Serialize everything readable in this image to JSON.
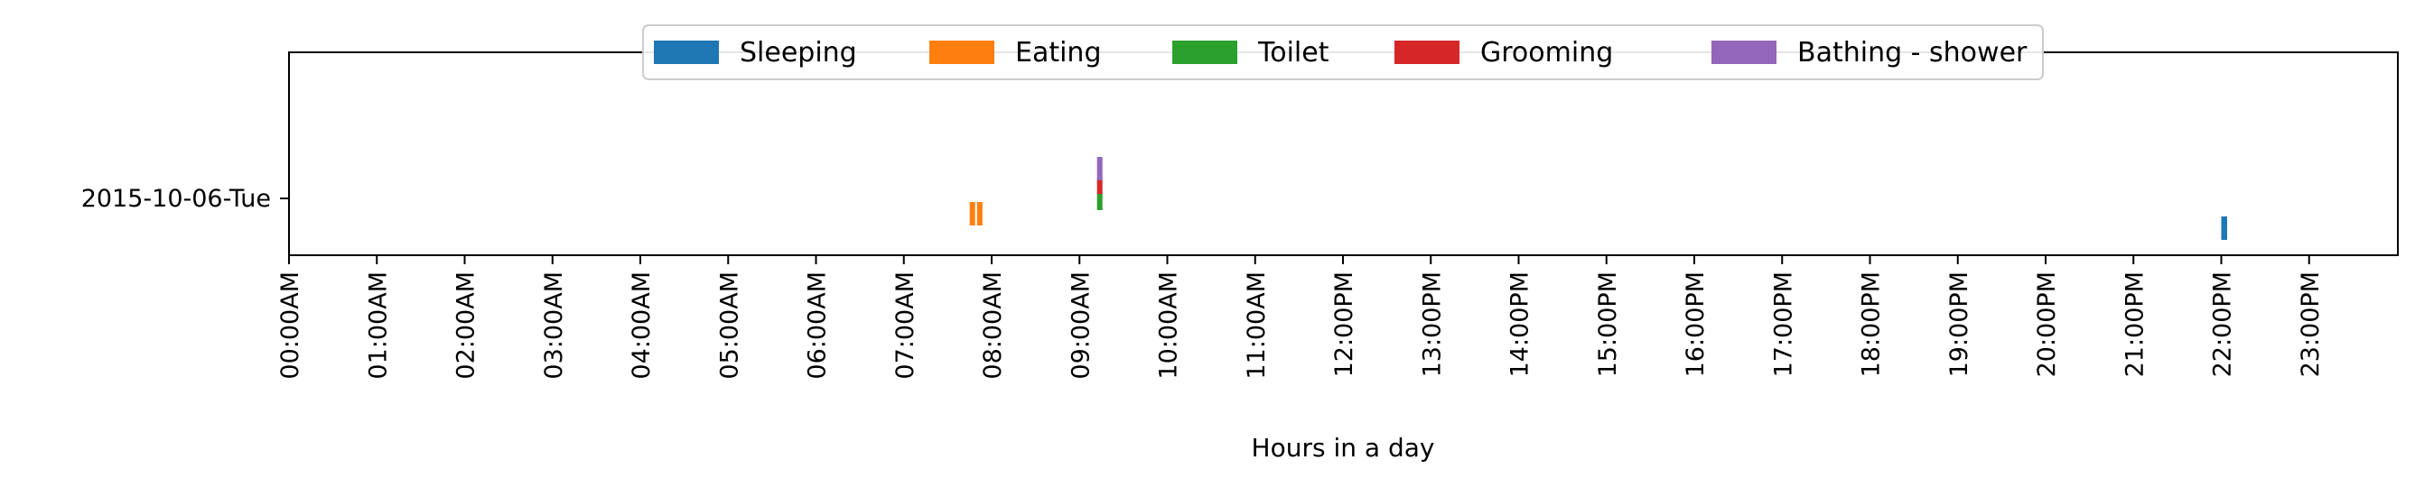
{
  "chart_data": {
    "type": "bar",
    "subtype": "activity-timeline",
    "title": "",
    "xlabel": "Hours in a day",
    "ylabel": "",
    "xlim_hours": [
      0,
      24
    ],
    "x_tick_labels": [
      "00:00AM",
      "01:00AM",
      "02:00AM",
      "03:00AM",
      "04:00AM",
      "05:00AM",
      "06:00AM",
      "07:00AM",
      "08:00AM",
      "09:00AM",
      "10:00AM",
      "11:00AM",
      "12:00PM",
      "13:00PM",
      "14:00PM",
      "15:00PM",
      "16:00PM",
      "17:00PM",
      "18:00PM",
      "19:00PM",
      "20:00PM",
      "21:00PM",
      "22:00PM",
      "23:00PM"
    ],
    "y_categories": [
      "2015-10-06-Tue"
    ],
    "grid": false,
    "legend_position": "top-center",
    "series": [
      {
        "name": "Sleeping",
        "color": "#1f77b4",
        "events": [
          {
            "day": "2015-10-06-Tue",
            "start": "22:00",
            "end": "22:04"
          }
        ]
      },
      {
        "name": "Eating",
        "color": "#ff7f0e",
        "events": [
          {
            "day": "2015-10-06-Tue",
            "start": "07:45",
            "end": "07:48"
          },
          {
            "day": "2015-10-06-Tue",
            "start": "07:50",
            "end": "07:53"
          }
        ]
      },
      {
        "name": "Toilet",
        "color": "#2ca02c",
        "events": [
          {
            "day": "2015-10-06-Tue",
            "start": "09:12",
            "end": "09:14"
          }
        ]
      },
      {
        "name": "Grooming",
        "color": "#d62728",
        "events": [
          {
            "day": "2015-10-06-Tue",
            "start": "09:12",
            "end": "09:14"
          }
        ]
      },
      {
        "name": "Bathing - shower",
        "color": "#9467bd",
        "events": [
          {
            "day": "2015-10-06-Tue",
            "start": "09:12",
            "end": "09:14"
          }
        ]
      }
    ]
  }
}
